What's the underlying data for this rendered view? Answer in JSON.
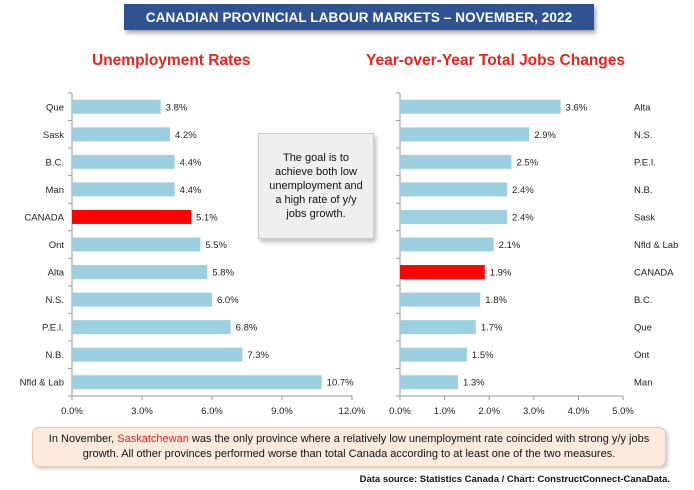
{
  "title": "CANADIAN PROVINCIAL LABOUR MARKETS – NOVEMBER, 2022",
  "callout": "The goal is to achieve both low unemployment and a high rate of y/y jobs growth.",
  "note": {
    "before": "In November, ",
    "highlight": "Saskatchewan",
    "after": " was the only province where a relatively low unemployment rate coincided with strong y/y jobs growth. All other provinces performed worse than total Canada according to at least one of the two measures."
  },
  "source": "Data source: Statistics Canada / Chart: ConstructConnect-CanaData.",
  "colors": {
    "bar": "#9ccfe0",
    "highlight": "#ff0000",
    "title": "#e8231c",
    "banner": "#2f5391"
  },
  "chart_data": [
    {
      "type": "bar",
      "orientation": "horizontal",
      "title": "Unemployment Rates",
      "categories": [
        "Que",
        "Sask",
        "B.C.",
        "Man",
        "CANADA",
        "Ont",
        "Alta",
        "N.S.",
        "P.E.I.",
        "N.B.",
        "Nfld & Lab"
      ],
      "values": [
        3.8,
        4.2,
        4.4,
        4.4,
        5.1,
        5.5,
        5.8,
        6.0,
        6.8,
        7.3,
        10.7
      ],
      "value_labels": [
        "3.8%",
        "4.2%",
        "4.4%",
        "4.4%",
        "5.1%",
        "5.5%",
        "5.8%",
        "6.0%",
        "6.8%",
        "7.3%",
        "10.7%"
      ],
      "highlight_category": "CANADA",
      "xlim": [
        0,
        12
      ],
      "xticks": [
        "0.0%",
        "3.0%",
        "6.0%",
        "9.0%",
        "12.0%"
      ],
      "category_axis": "left",
      "grid": false
    },
    {
      "type": "bar",
      "orientation": "horizontal",
      "title": "Year-over-Year Total Jobs Changes",
      "categories": [
        "Alta",
        "N.S.",
        "P.E.I.",
        "N.B.",
        "Sask",
        "Nfld & Lab",
        "CANADA",
        "B.C.",
        "Que",
        "Ont",
        "Man"
      ],
      "values": [
        3.6,
        2.9,
        2.5,
        2.4,
        2.4,
        2.1,
        1.9,
        1.8,
        1.7,
        1.5,
        1.3
      ],
      "value_labels": [
        "3.6%",
        "2.9%",
        "2.5%",
        "2.4%",
        "2.4%",
        "2.1%",
        "1.9%",
        "1.8%",
        "1.7%",
        "1.5%",
        "1.3%"
      ],
      "highlight_category": "CANADA",
      "xlim": [
        0,
        5
      ],
      "xticks": [
        "0.0%",
        "1.0%",
        "2.0%",
        "3.0%",
        "4.0%",
        "5.0%"
      ],
      "category_axis": "right",
      "grid": false
    }
  ]
}
